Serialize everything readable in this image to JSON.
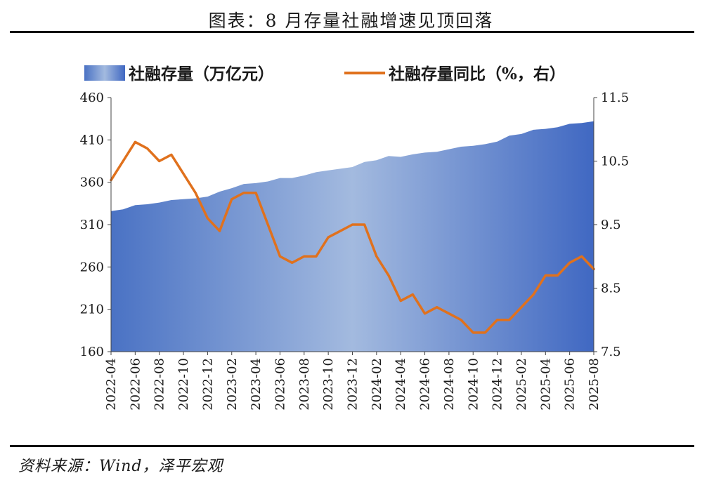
{
  "title": "图表：8 月存量社融增速见顶回落",
  "source": "资料来源：Wind，泽平宏观",
  "colors": {
    "area_start": "#4a72c4",
    "area_mid": "#a3badf",
    "area_end": "#4068c2",
    "line": "#e0711d"
  },
  "chart_data": {
    "type": "area+line",
    "legend_position": "top",
    "grid": false,
    "categories": [
      "2022-04",
      "2022-05",
      "2022-06",
      "2022-07",
      "2022-08",
      "2022-09",
      "2022-10",
      "2022-11",
      "2022-12",
      "2023-01",
      "2023-02",
      "2023-03",
      "2023-04",
      "2023-05",
      "2023-06",
      "2023-07",
      "2023-08",
      "2023-09",
      "2023-10",
      "2023-11",
      "2023-12",
      "2024-01",
      "2024-02",
      "2024-03",
      "2024-04",
      "2024-05",
      "2024-06",
      "2024-07",
      "2024-08",
      "2024-09",
      "2024-10",
      "2024-11",
      "2024-12",
      "2025-01",
      "2025-02",
      "2025-03",
      "2025-04",
      "2025-05",
      "2025-06",
      "2025-07",
      "2025-08"
    ],
    "x_tick_labels": [
      "2022-04",
      "2022-06",
      "2022-08",
      "2022-10",
      "2022-12",
      "2023-02",
      "2023-04",
      "2023-06",
      "2023-08",
      "2023-10",
      "2023-12",
      "2024-02",
      "2024-04",
      "2024-06",
      "2024-08",
      "2024-10",
      "2024-12",
      "2025-02",
      "2025-04",
      "2025-06",
      "2025-08"
    ],
    "y_left": {
      "min": 160,
      "max": 460,
      "ticks": [
        "460",
        "410",
        "360",
        "310",
        "260",
        "210",
        "160"
      ]
    },
    "y_right": {
      "min": 7.5,
      "max": 11.5,
      "ticks": [
        "11.5",
        "10.5",
        "9.5",
        "8.5",
        "7.5"
      ]
    },
    "series": [
      {
        "name": "社融存量（万亿元）",
        "type": "area",
        "axis": "left",
        "values": [
          326,
          328,
          333,
          334,
          336,
          339,
          340,
          341,
          343,
          349,
          353,
          358,
          359,
          361,
          365,
          365,
          368,
          372,
          374,
          376,
          378,
          384,
          386,
          391,
          390,
          393,
          395,
          396,
          399,
          402,
          403,
          405,
          408,
          415,
          417,
          422,
          423,
          425,
          429,
          430,
          432
        ]
      },
      {
        "name": "社融存量同比（%，右）",
        "type": "line",
        "axis": "right",
        "values": [
          10.2,
          10.5,
          10.8,
          10.7,
          10.5,
          10.6,
          10.3,
          10.0,
          9.6,
          9.4,
          9.9,
          10.0,
          10.0,
          9.5,
          9.0,
          8.9,
          9.0,
          9.0,
          9.3,
          9.4,
          9.5,
          9.5,
          9.0,
          8.7,
          8.3,
          8.4,
          8.1,
          8.2,
          8.1,
          8.0,
          7.8,
          7.8,
          8.0,
          8.0,
          8.2,
          8.4,
          8.7,
          8.7,
          8.9,
          9.0,
          8.8
        ]
      }
    ]
  }
}
